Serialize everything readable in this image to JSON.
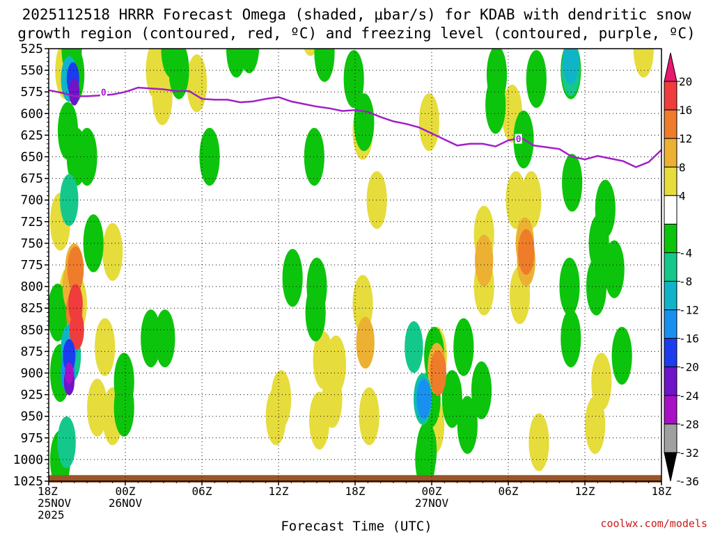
{
  "title_line1": "2025112518 HRRR Forecast Omega (shaded, μbar/s) for KDAB with dendritic snow",
  "title_line2": "growth region (contoured, red, ºC) and freezing level (contoured, purple, ºC)",
  "credit": "coolwx.com/models",
  "chart_data": {
    "type": "heatmap",
    "xlabel": "Forecast Time (UTC)",
    "x_ticks": [
      {
        "hour": 0,
        "lines": [
          "18Z",
          "25NOV",
          "2025"
        ]
      },
      {
        "hour": 6,
        "lines": [
          "00Z",
          "26NOV"
        ]
      },
      {
        "hour": 12,
        "lines": [
          "06Z"
        ]
      },
      {
        "hour": 18,
        "lines": [
          "12Z"
        ]
      },
      {
        "hour": 24,
        "lines": [
          "18Z"
        ]
      },
      {
        "hour": 30,
        "lines": [
          "00Z",
          "27NOV"
        ]
      },
      {
        "hour": 36,
        "lines": [
          "06Z"
        ]
      },
      {
        "hour": 42,
        "lines": [
          "12Z"
        ]
      },
      {
        "hour": 48,
        "lines": [
          "18Z"
        ]
      }
    ],
    "y_ticks": [
      525,
      550,
      575,
      600,
      625,
      650,
      675,
      700,
      725,
      750,
      775,
      800,
      825,
      850,
      875,
      900,
      925,
      950,
      975,
      1000,
      1025
    ],
    "ylim": [
      525,
      1025
    ],
    "xlim": [
      0,
      48
    ],
    "grid": true,
    "colorbar": {
      "labels": [
        "20",
        "16",
        "12",
        "8",
        "4",
        "-4",
        "-8",
        "-12",
        "-16",
        "-20",
        "-24",
        "-28",
        "-32",
        "-36"
      ],
      "bins": [
        {
          "color": "#e8186e"
        },
        {
          "color": "#f03c3c"
        },
        {
          "color": "#ee7c2a"
        },
        {
          "color": "#ecb032"
        },
        {
          "color": "#e6dc3c"
        },
        {
          "color": "#ffffff"
        },
        {
          "color": "#0cc40c"
        },
        {
          "color": "#14c88c"
        },
        {
          "color": "#10b4c8"
        },
        {
          "color": "#1890f0"
        },
        {
          "color": "#1c3cf0"
        },
        {
          "color": "#7014c8"
        },
        {
          "color": "#a810c8"
        },
        {
          "color": "#a0a0a0"
        },
        {
          "color": "#000000"
        }
      ]
    },
    "freezing_level": {
      "color": "#a020c8",
      "label": "0",
      "points": [
        [
          0,
          573
        ],
        [
          1,
          576
        ],
        [
          2,
          580
        ],
        [
          3,
          580
        ],
        [
          4,
          579
        ],
        [
          5,
          578
        ],
        [
          6,
          575
        ],
        [
          7,
          570
        ],
        [
          8,
          571
        ],
        [
          9,
          572
        ],
        [
          10,
          574
        ],
        [
          11,
          574
        ],
        [
          12,
          583
        ],
        [
          13,
          584
        ],
        [
          14,
          584
        ],
        [
          15,
          587
        ],
        [
          16,
          586
        ],
        [
          17,
          583
        ],
        [
          18,
          581
        ],
        [
          19,
          586
        ],
        [
          20,
          589
        ],
        [
          21,
          592
        ],
        [
          22,
          594
        ],
        [
          23,
          597
        ],
        [
          24,
          596
        ],
        [
          25,
          598
        ],
        [
          26,
          604
        ],
        [
          27,
          609
        ],
        [
          28,
          612
        ],
        [
          29,
          616
        ],
        [
          30,
          623
        ],
        [
          31,
          630
        ],
        [
          32,
          637
        ],
        [
          33,
          635
        ],
        [
          34,
          635
        ],
        [
          35,
          638
        ],
        [
          36,
          631
        ],
        [
          37,
          628
        ],
        [
          38,
          637
        ],
        [
          39,
          639
        ],
        [
          40,
          641
        ],
        [
          41,
          650
        ],
        [
          42,
          653
        ],
        [
          43,
          649
        ],
        [
          44,
          652
        ],
        [
          45,
          655
        ],
        [
          46,
          662
        ],
        [
          47,
          656
        ],
        [
          48,
          642
        ]
      ]
    },
    "omega_fields": [
      {
        "level": 4,
        "cells": [
          [
            1.3,
            550
          ],
          [
            1.6,
            530
          ],
          [
            8.4,
            550
          ],
          [
            8.9,
            580
          ],
          [
            11.6,
            565
          ],
          [
            20.5,
            500
          ],
          [
            36.3,
            600
          ],
          [
            36.6,
            700
          ],
          [
            36.9,
            810
          ],
          [
            37.8,
            700
          ],
          [
            0.9,
            725
          ],
          [
            1.6,
            810
          ],
          [
            2.2,
            820
          ],
          [
            4.4,
            870
          ],
          [
            3.8,
            940
          ],
          [
            5.0,
            760
          ],
          [
            5.0,
            950
          ],
          [
            24.6,
            820
          ],
          [
            25.1,
            950
          ],
          [
            25.7,
            700
          ],
          [
            30.4,
            880
          ],
          [
            30.2,
            960
          ],
          [
            34.1,
            740
          ],
          [
            34.1,
            800
          ],
          [
            43.3,
            910
          ],
          [
            42.8,
            960
          ],
          [
            38.4,
            980
          ],
          [
            21.5,
            885
          ],
          [
            22.2,
            930
          ],
          [
            21.2,
            955
          ],
          [
            17.8,
            950
          ],
          [
            18.2,
            930
          ],
          [
            46.6,
            525
          ],
          [
            22.5,
            890
          ],
          [
            24.6,
            620
          ],
          [
            29.8,
            610
          ]
        ]
      },
      {
        "level": 8,
        "cells": [
          [
            1.8,
            800
          ],
          [
            2.0,
            780
          ],
          [
            24.8,
            865
          ],
          [
            30.4,
            895
          ],
          [
            37.4,
            770
          ],
          [
            37.3,
            750
          ],
          [
            34.1,
            770
          ]
        ]
      },
      {
        "level": 12,
        "cells": [
          [
            2.0,
            830
          ],
          [
            2.1,
            780
          ],
          [
            37.4,
            760
          ],
          [
            30.5,
            900
          ]
        ]
      },
      {
        "level": 16,
        "cells": [
          [
            2.1,
            820
          ],
          [
            2.2,
            850
          ]
        ]
      },
      {
        "level": -4,
        "cells": [
          [
            1.8,
            525
          ],
          [
            2.0,
            555
          ],
          [
            1.5,
            620
          ],
          [
            2.2,
            650
          ],
          [
            9.6,
            525
          ],
          [
            10.2,
            550
          ],
          [
            12.6,
            650
          ],
          [
            21.6,
            530
          ],
          [
            23.9,
            560
          ],
          [
            24.7,
            610
          ],
          [
            20.8,
            650
          ],
          [
            21.0,
            800
          ],
          [
            20.9,
            830
          ],
          [
            19.1,
            790
          ],
          [
            14.7,
            525
          ],
          [
            15.7,
            520
          ],
          [
            30.2,
            880
          ],
          [
            29.9,
            930
          ],
          [
            29.6,
            990
          ],
          [
            29.5,
            1000
          ],
          [
            32.5,
            870
          ],
          [
            31.6,
            930
          ],
          [
            32.8,
            960
          ],
          [
            33.9,
            920
          ],
          [
            35.0,
            590
          ],
          [
            35.1,
            555
          ],
          [
            37.2,
            630
          ],
          [
            38.2,
            560
          ],
          [
            40.9,
            550
          ],
          [
            41.0,
            680
          ],
          [
            40.8,
            800
          ],
          [
            40.9,
            860
          ],
          [
            42.9,
            800
          ],
          [
            43.6,
            710
          ],
          [
            43.1,
            750
          ],
          [
            44.3,
            780
          ],
          [
            44.9,
            880
          ],
          [
            0.7,
            830
          ],
          [
            0.9,
            900
          ],
          [
            0.9,
            1000
          ],
          [
            3.5,
            750
          ],
          [
            3.0,
            650
          ],
          [
            5.9,
            910
          ],
          [
            5.9,
            940
          ],
          [
            8.0,
            860
          ],
          [
            9.1,
            860
          ]
        ]
      },
      {
        "level": -8,
        "cells": [
          [
            1.6,
            700
          ],
          [
            1.8,
            880
          ],
          [
            1.4,
            980
          ],
          [
            28.6,
            870
          ],
          [
            29.3,
            930
          ],
          [
            40.9,
            550
          ]
        ]
      },
      {
        "level": -12,
        "cells": [
          [
            1.6,
            870
          ],
          [
            29.3,
            930
          ],
          [
            1.6,
            560
          ],
          [
            40.9,
            540
          ]
        ]
      },
      {
        "level": -16,
        "cells": [
          [
            1.5,
            900
          ],
          [
            29.4,
            930
          ]
        ]
      },
      {
        "level": -20,
        "cells": [
          [
            1.6,
            880
          ],
          [
            1.9,
            560
          ]
        ]
      },
      {
        "level": -24,
        "cells": [
          [
            1.6,
            910
          ],
          [
            2.0,
            575
          ]
        ]
      },
      {
        "level": -28,
        "cells": [
          [
            1.6,
            900
          ]
        ]
      }
    ],
    "terrain": {
      "color": "#9b5528",
      "base_level": 1025
    }
  }
}
